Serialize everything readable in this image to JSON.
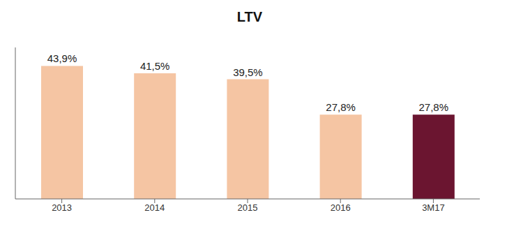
{
  "chart_data": {
    "type": "bar",
    "title": "LTV",
    "categories": [
      "2013",
      "2014",
      "2015",
      "2016",
      "3M17"
    ],
    "values": [
      43.9,
      41.5,
      39.5,
      27.8,
      27.8
    ],
    "value_labels": [
      "43,9%",
      "41,5%",
      "39,5%",
      "27,8%",
      "27,8%"
    ],
    "colors": [
      "#F5C5A3",
      "#F5C5A3",
      "#F5C5A3",
      "#F5C5A3",
      "#6B1530"
    ],
    "ylim": [
      0,
      50
    ],
    "data_labels": true,
    "tick_labels": "x",
    "grid": false
  }
}
